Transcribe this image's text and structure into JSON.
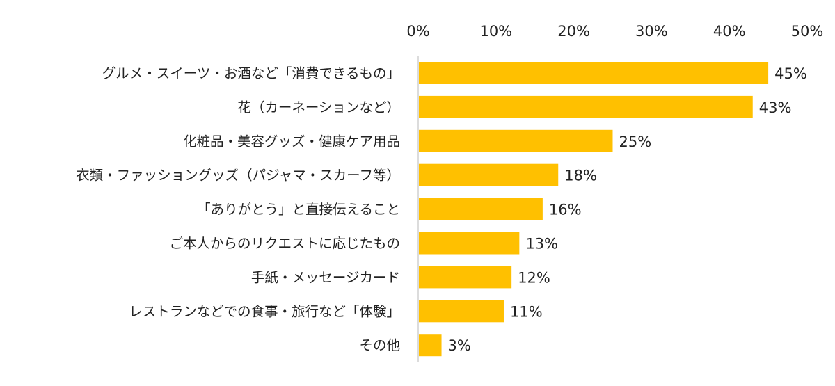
{
  "chart_data": {
    "type": "bar",
    "orientation": "horizontal",
    "title": "",
    "xlabel": "",
    "ylabel": "",
    "xlim": [
      0,
      50
    ],
    "x_ticks": [
      "0%",
      "10%",
      "20%",
      "30%",
      "40%",
      "50%"
    ],
    "x_tick_values": [
      0,
      10,
      20,
      30,
      40,
      50
    ],
    "x_axis_position": "top",
    "grid": false,
    "bar_color": "#FFC000",
    "categories": [
      "グルメ・スイーツ・お酒など「消費できるもの」",
      "花（カーネーションなど）",
      "化粧品・美容グッズ・健康ケア用品",
      "衣類・ファッショングッズ（パジャマ・スカーフ等）",
      "「ありがとう」と直接伝えること",
      "ご本人からのリクエストに応じたもの",
      "手紙・メッセージカード",
      "レストランなどでの食事・旅行など「体験」",
      "その他"
    ],
    "values": [
      45,
      43,
      25,
      18,
      16,
      13,
      12,
      11,
      3
    ],
    "data_labels": [
      "45%",
      "43%",
      "25%",
      "18%",
      "16%",
      "13%",
      "12%",
      "11%",
      "3%"
    ]
  }
}
